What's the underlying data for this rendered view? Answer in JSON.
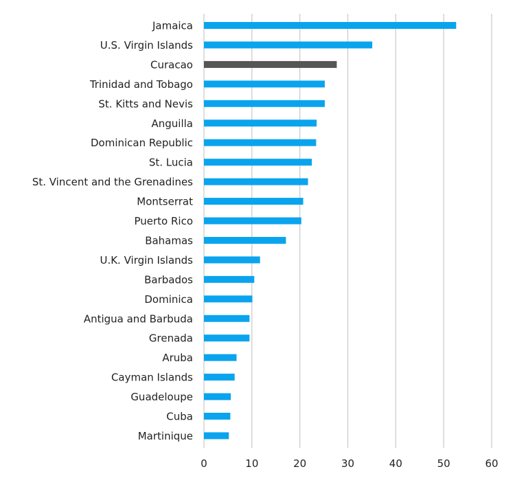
{
  "chart_data": {
    "type": "bar",
    "orientation": "horizontal",
    "title": "",
    "xlabel": "",
    "ylabel": "",
    "xlim": [
      0,
      60
    ],
    "xticks": [
      0,
      10,
      20,
      30,
      40,
      50,
      60
    ],
    "grid": true,
    "categories": [
      "Jamaica",
      "U.S. Virgin Islands",
      "Curacao",
      "Trinidad and Tobago",
      "St. Kitts and Nevis",
      "Anguilla",
      "Dominican Republic",
      "St. Lucia",
      "St. Vincent and the Grenadines",
      "Montserrat",
      "Puerto Rico",
      "Bahamas",
      "U.K. Virgin Islands",
      "Barbados",
      "Dominica",
      "Antigua and Barbuda",
      "Grenada",
      "Aruba",
      "Cayman Islands",
      "Guadeloupe",
      "Cuba",
      "Martinique"
    ],
    "values": [
      52.6,
      35.1,
      27.7,
      25.2,
      25.2,
      23.5,
      23.4,
      22.5,
      21.7,
      20.7,
      20.3,
      17.1,
      11.7,
      10.5,
      10.1,
      9.5,
      9.5,
      6.8,
      6.4,
      5.6,
      5.5,
      5.2
    ],
    "colors": {
      "default": "#0aa4ee",
      "highlight": "#555555",
      "grid": "#c8c8c8"
    },
    "highlight": [
      "Curacao"
    ]
  }
}
